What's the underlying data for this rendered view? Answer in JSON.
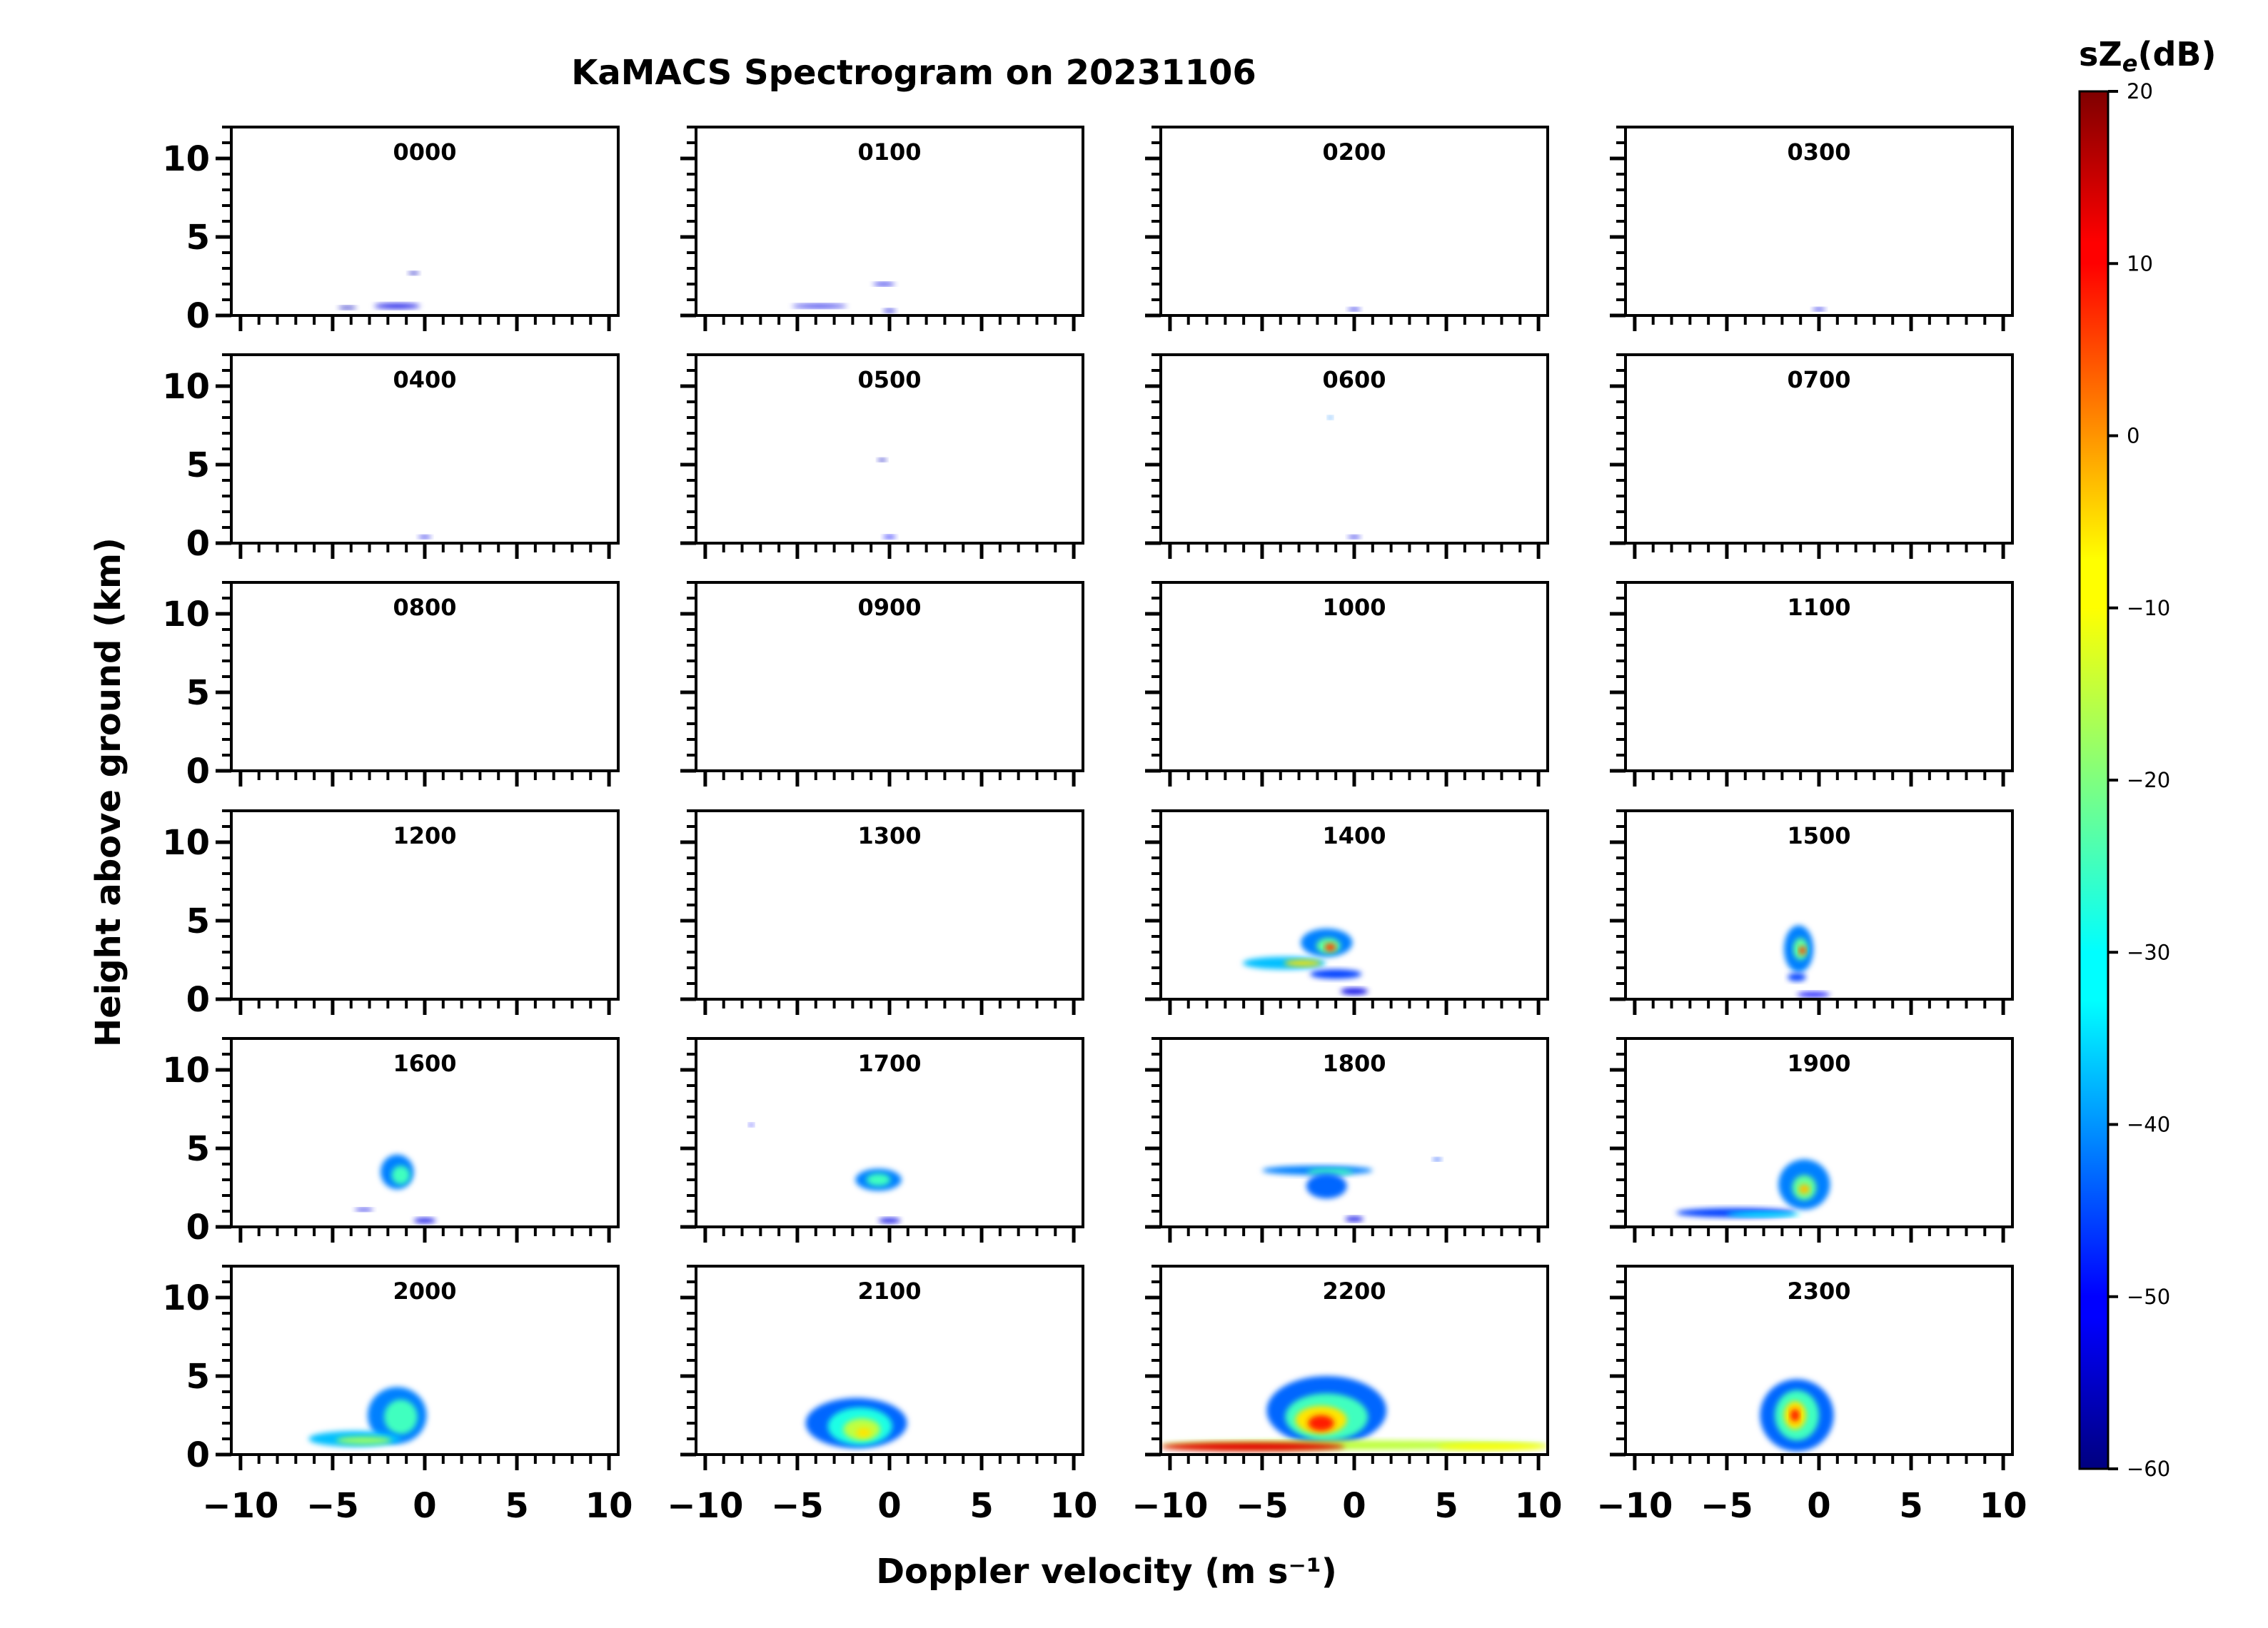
{
  "chart_data": {
    "type": "heatmap",
    "title": "KaMACS Spectrogram on 20231106",
    "xlabel": "Doppler velocity (m s⁻¹)",
    "ylabel": "Height above ground (km)",
    "xlim": [
      -10.5,
      10.5
    ],
    "ylim": [
      0,
      12
    ],
    "x_ticks": [
      -10,
      -5,
      0,
      5,
      10
    ],
    "x_tick_labels": [
      "−10",
      "−5",
      "0",
      "5",
      "10"
    ],
    "y_ticks": [
      0,
      5,
      10
    ],
    "y_tick_labels": [
      "0",
      "5",
      "10"
    ],
    "grid": false,
    "colorbar": {
      "label_main": "sZ",
      "label_sub": "e",
      "label_tail": "(dB)",
      "range": [
        -60,
        20
      ],
      "ticks": [
        20,
        10,
        0,
        -10,
        -20,
        -30,
        -40,
        -50,
        -60
      ],
      "tick_labels": [
        "20",
        "10",
        "0",
        "−10",
        "−20",
        "−30",
        "−40",
        "−50",
        "−60"
      ],
      "colormap": "jet"
    },
    "panels": [
      {
        "label": "0000",
        "blobs": [
          {
            "x": -1.5,
            "y": 0.6,
            "w": 2.5,
            "h": 0.3,
            "v": -52
          },
          {
            "x": -0.6,
            "y": 2.7,
            "w": 0.6,
            "h": 0.12,
            "v": -55
          },
          {
            "x": -4.2,
            "y": 0.5,
            "w": 1.0,
            "h": 0.12,
            "v": -55
          }
        ]
      },
      {
        "label": "0100",
        "blobs": [
          {
            "x": -3.8,
            "y": 0.6,
            "w": 3.0,
            "h": 0.22,
            "v": -52
          },
          {
            "x": -0.3,
            "y": 2.0,
            "w": 1.2,
            "h": 0.2,
            "v": -52
          },
          {
            "x": 0.0,
            "y": 0.3,
            "w": 0.7,
            "h": 0.2,
            "v": -53
          }
        ]
      },
      {
        "label": "0200",
        "blobs": [
          {
            "x": 0.0,
            "y": 0.4,
            "w": 0.7,
            "h": 0.15,
            "v": -52
          }
        ]
      },
      {
        "label": "0300",
        "blobs": [
          {
            "x": 0.0,
            "y": 0.4,
            "w": 0.7,
            "h": 0.15,
            "v": -52
          }
        ]
      },
      {
        "label": "0400",
        "blobs": [
          {
            "x": 0.0,
            "y": 0.4,
            "w": 0.7,
            "h": 0.15,
            "v": -52
          }
        ]
      },
      {
        "label": "0500",
        "blobs": [
          {
            "x": -0.4,
            "y": 5.3,
            "w": 0.5,
            "h": 0.12,
            "v": -55
          },
          {
            "x": 0.0,
            "y": 0.4,
            "w": 0.7,
            "h": 0.2,
            "v": -50
          }
        ]
      },
      {
        "label": "0600",
        "blobs": [
          {
            "x": -1.3,
            "y": 8.0,
            "w": 0.3,
            "h": 0.1,
            "v": -40
          },
          {
            "x": 0.0,
            "y": 0.4,
            "w": 0.7,
            "h": 0.15,
            "v": -52
          }
        ]
      },
      {
        "label": "0700",
        "blobs": []
      },
      {
        "label": "0800",
        "blobs": []
      },
      {
        "label": "0900",
        "blobs": []
      },
      {
        "label": "1000",
        "blobs": []
      },
      {
        "label": "1100",
        "blobs": []
      },
      {
        "label": "1200",
        "blobs": []
      },
      {
        "label": "1300",
        "blobs": []
      },
      {
        "label": "1400",
        "blobs": [
          {
            "x": -1.5,
            "y": 3.6,
            "w": 2.8,
            "h": 1.8,
            "v": -40
          },
          {
            "x": -1.4,
            "y": 3.4,
            "w": 1.3,
            "h": 1.0,
            "v": -22
          },
          {
            "x": -1.3,
            "y": 3.3,
            "w": 0.6,
            "h": 0.5,
            "v": 5
          },
          {
            "x": -3.8,
            "y": 2.3,
            "w": 4.5,
            "h": 0.8,
            "v": -35
          },
          {
            "x": -2.8,
            "y": 2.3,
            "w": 2.0,
            "h": 0.4,
            "v": -8
          },
          {
            "x": -1.0,
            "y": 1.6,
            "w": 2.8,
            "h": 0.6,
            "v": -45
          },
          {
            "x": 0.0,
            "y": 0.5,
            "w": 1.5,
            "h": 0.4,
            "v": -52
          }
        ]
      },
      {
        "label": "1500",
        "blobs": [
          {
            "x": -1.1,
            "y": 3.2,
            "w": 1.6,
            "h": 3.0,
            "v": -40
          },
          {
            "x": -1.0,
            "y": 3.2,
            "w": 0.8,
            "h": 1.4,
            "v": -22
          },
          {
            "x": -0.9,
            "y": 3.1,
            "w": 0.4,
            "h": 0.5,
            "v": 5
          },
          {
            "x": -1.2,
            "y": 1.4,
            "w": 1.0,
            "h": 0.5,
            "v": -45
          },
          {
            "x": -0.3,
            "y": 0.3,
            "w": 1.8,
            "h": 0.3,
            "v": -50
          }
        ]
      },
      {
        "label": "1600",
        "blobs": [
          {
            "x": -1.5,
            "y": 3.5,
            "w": 1.8,
            "h": 2.2,
            "v": -40
          },
          {
            "x": -1.3,
            "y": 3.3,
            "w": 1.0,
            "h": 1.2,
            "v": -25
          },
          {
            "x": -3.3,
            "y": 1.1,
            "w": 1.0,
            "h": 0.15,
            "v": -52
          },
          {
            "x": 0.0,
            "y": 0.4,
            "w": 1.2,
            "h": 0.3,
            "v": -52
          }
        ]
      },
      {
        "label": "1700",
        "blobs": [
          {
            "x": -0.6,
            "y": 3.0,
            "w": 2.5,
            "h": 1.4,
            "v": -40
          },
          {
            "x": -0.6,
            "y": 3.0,
            "w": 1.3,
            "h": 0.8,
            "v": -25
          },
          {
            "x": -7.5,
            "y": 6.5,
            "w": 0.3,
            "h": 0.1,
            "v": -50
          },
          {
            "x": 0.0,
            "y": 0.4,
            "w": 1.2,
            "h": 0.3,
            "v": -52
          }
        ]
      },
      {
        "label": "1800",
        "blobs": [
          {
            "x": -2.0,
            "y": 3.6,
            "w": 6.0,
            "h": 0.6,
            "v": -40
          },
          {
            "x": -1.3,
            "y": 3.5,
            "w": 2.5,
            "h": 0.4,
            "v": -25
          },
          {
            "x": -1.5,
            "y": 2.6,
            "w": 2.2,
            "h": 1.6,
            "v": -42
          },
          {
            "x": 0.0,
            "y": 0.5,
            "w": 1.0,
            "h": 0.3,
            "v": -52
          },
          {
            "x": 4.5,
            "y": 4.3,
            "w": 0.5,
            "h": 0.1,
            "v": -45
          }
        ]
      },
      {
        "label": "1900",
        "blobs": [
          {
            "x": -0.8,
            "y": 2.7,
            "w": 2.8,
            "h": 3.2,
            "v": -40
          },
          {
            "x": -0.8,
            "y": 2.5,
            "w": 1.3,
            "h": 1.6,
            "v": -22
          },
          {
            "x": -0.8,
            "y": 2.4,
            "w": 0.6,
            "h": 0.6,
            "v": -5
          },
          {
            "x": -4.5,
            "y": 0.9,
            "w": 6.5,
            "h": 0.6,
            "v": -45
          },
          {
            "x": -3.0,
            "y": 0.8,
            "w": 4.0,
            "h": 0.3,
            "v": -30
          }
        ]
      },
      {
        "label": "2000",
        "blobs": [
          {
            "x": -1.5,
            "y": 2.5,
            "w": 3.2,
            "h": 3.6,
            "v": -40
          },
          {
            "x": -1.3,
            "y": 2.4,
            "w": 1.8,
            "h": 2.2,
            "v": -25
          },
          {
            "x": -3.8,
            "y": 1.0,
            "w": 5.0,
            "h": 1.0,
            "v": -35
          },
          {
            "x": -3.3,
            "y": 0.9,
            "w": 3.0,
            "h": 0.5,
            "v": -18
          }
        ]
      },
      {
        "label": "2100",
        "blobs": [
          {
            "x": -1.8,
            "y": 2.0,
            "w": 5.5,
            "h": 3.2,
            "v": -42
          },
          {
            "x": -1.6,
            "y": 1.8,
            "w": 3.5,
            "h": 2.4,
            "v": -28
          },
          {
            "x": -1.5,
            "y": 1.6,
            "w": 2.0,
            "h": 1.4,
            "v": -15
          },
          {
            "x": -1.4,
            "y": 1.4,
            "w": 0.8,
            "h": 0.6,
            "v": -8
          }
        ]
      },
      {
        "label": "2200",
        "blobs": [
          {
            "x": -1.5,
            "y": 2.8,
            "w": 6.5,
            "h": 4.4,
            "v": -42
          },
          {
            "x": -1.5,
            "y": 2.4,
            "w": 4.5,
            "h": 3.0,
            "v": -25
          },
          {
            "x": -1.8,
            "y": 2.2,
            "w": 2.8,
            "h": 1.8,
            "v": -8
          },
          {
            "x": -1.8,
            "y": 2.0,
            "w": 1.4,
            "h": 1.0,
            "v": 8
          },
          {
            "x": 0.0,
            "y": 0.6,
            "w": 21.0,
            "h": 0.6,
            "v": -15
          },
          {
            "x": -5.5,
            "y": 0.5,
            "w": 10.0,
            "h": 0.55,
            "v": 12
          },
          {
            "x": 7.5,
            "y": 0.5,
            "w": 6.0,
            "h": 0.4,
            "v": -10
          }
        ]
      },
      {
        "label": "2300",
        "blobs": [
          {
            "x": -1.2,
            "y": 2.5,
            "w": 4.0,
            "h": 4.6,
            "v": -42
          },
          {
            "x": -1.2,
            "y": 2.5,
            "w": 2.4,
            "h": 3.2,
            "v": -25
          },
          {
            "x": -1.3,
            "y": 2.5,
            "w": 1.2,
            "h": 1.8,
            "v": -8
          },
          {
            "x": -1.3,
            "y": 2.5,
            "w": 0.5,
            "h": 0.8,
            "v": 8
          }
        ]
      }
    ]
  }
}
